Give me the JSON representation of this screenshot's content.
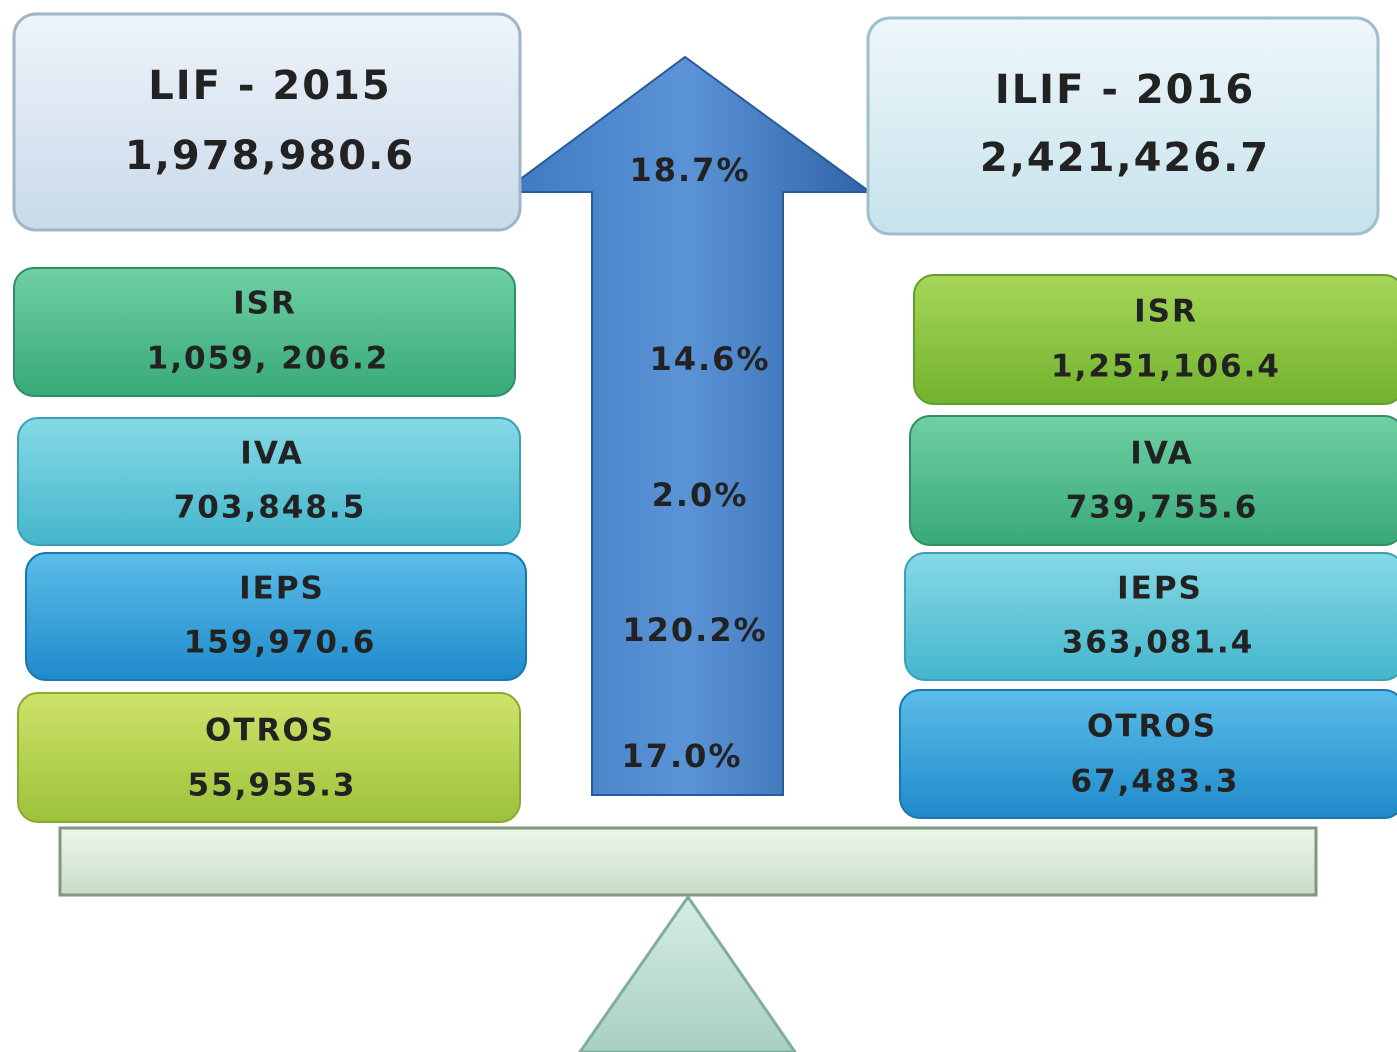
{
  "left": {
    "header": {
      "title": "LIF - 2015",
      "value": "1,978,980.6"
    },
    "items": [
      {
        "label": "ISR",
        "value": "1,059, 206.2"
      },
      {
        "label": "IVA",
        "value": "703,848.5"
      },
      {
        "label": "IEPS",
        "value": "159,970.6"
      },
      {
        "label": "OTROS",
        "value": "55,955.3"
      }
    ]
  },
  "right": {
    "header": {
      "title": "ILIF - 2016",
      "value": "2,421,426.7"
    },
    "items": [
      {
        "label": "ISR",
        "value": "1,251,106.4"
      },
      {
        "label": "IVA",
        "value": "739,755.6"
      },
      {
        "label": "IEPS",
        "value": "363,081.4"
      },
      {
        "label": "OTROS",
        "value": "67,483.3"
      }
    ]
  },
  "arrow": {
    "percentages": [
      "18.7%",
      "14.6%",
      "2.0%",
      "120.2%",
      "17.0%"
    ]
  }
}
